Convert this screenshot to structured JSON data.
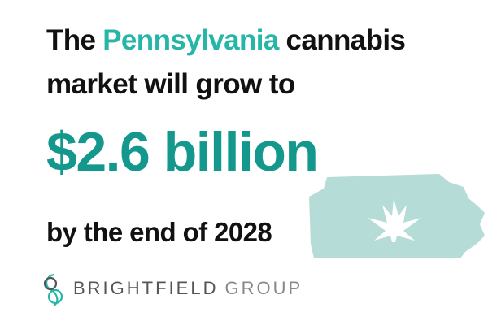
{
  "headline": {
    "intro": "The",
    "state": "Pennsylvania",
    "subject": "cannabis",
    "line2": "market will grow to",
    "amount": "$2.6 billion",
    "line3": "by the end of 2028"
  },
  "logo": {
    "brand": "BRIGHTFIELD",
    "group": "GROUP"
  }
}
